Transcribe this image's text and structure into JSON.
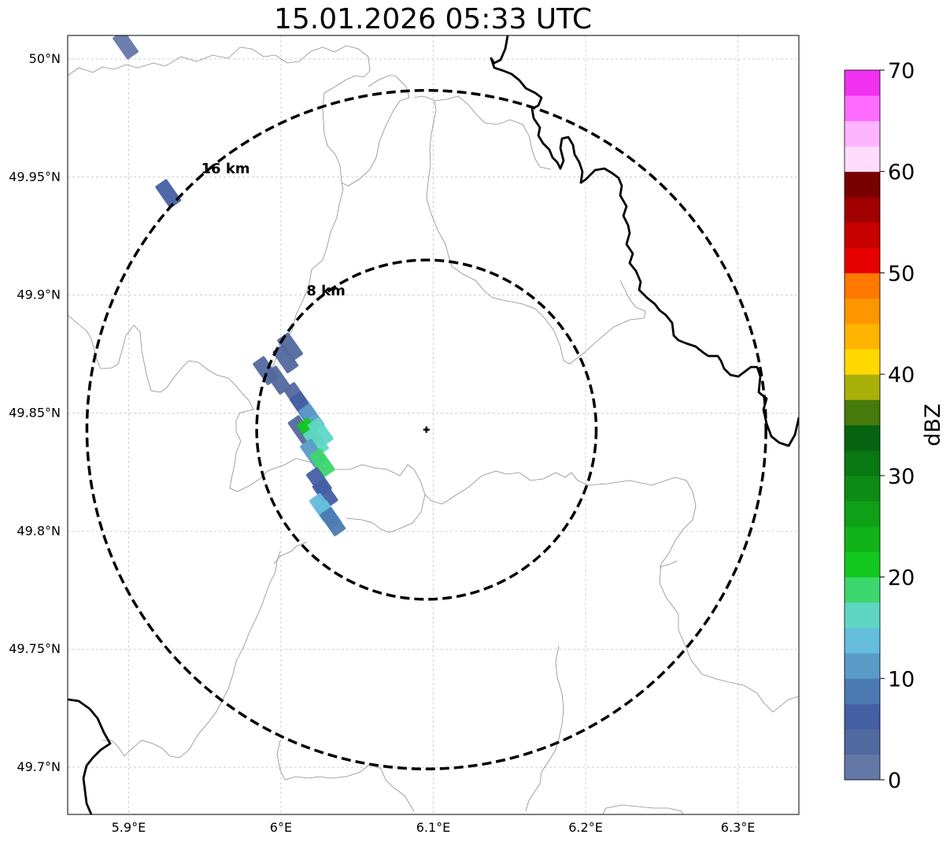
{
  "title": "15.01.2026 05:33 UTC",
  "map": {
    "lon_range": [
      5.86,
      6.34
    ],
    "lat_range": [
      49.68,
      50.01
    ],
    "x_ticks": [
      {
        "value": 5.9,
        "label": "5.9°E"
      },
      {
        "value": 6.0,
        "label": "6°E"
      },
      {
        "value": 6.1,
        "label": "6.1°E"
      },
      {
        "value": 6.2,
        "label": "6.2°E"
      },
      {
        "value": 6.3,
        "label": "6.3°E"
      }
    ],
    "y_ticks": [
      {
        "value": 50.0,
        "label": "50°N"
      },
      {
        "value": 49.95,
        "label": "49.95°N"
      },
      {
        "value": 49.9,
        "label": "49.9°N"
      },
      {
        "value": 49.85,
        "label": "49.85°N"
      },
      {
        "value": 49.8,
        "label": "49.8°N"
      },
      {
        "value": 49.75,
        "label": "49.75°N"
      },
      {
        "value": 49.7,
        "label": "49.7°N"
      }
    ],
    "radar_site": {
      "lon": 6.0955,
      "lat": 49.843
    },
    "range_rings": [
      {
        "label": "8 km",
        "radius_km": 8
      },
      {
        "label": "16 km",
        "radius_km": 16
      }
    ]
  },
  "colorbar": {
    "label": "dBZ",
    "min": 0,
    "max": 70,
    "step": 2.5,
    "tick_labels": [
      "0",
      "10",
      "20",
      "30",
      "40",
      "50",
      "60",
      "70"
    ],
    "colors": [
      "#6478a8",
      "#52699f",
      "#445fa3",
      "#4b7ab2",
      "#5a9bc8",
      "#64bddb",
      "#5fd6c4",
      "#3cd66e",
      "#12c81e",
      "#10b41a",
      "#0ea016",
      "#0c8c14",
      "#0a7812",
      "#066410",
      "#467a0a",
      "#aab00a",
      "#ffd800",
      "#ffb400",
      "#ff9600",
      "#ff7800",
      "#e60000",
      "#c80000",
      "#a00000",
      "#780000",
      "#ffdcff",
      "#ffb4ff",
      "#ff6cff",
      "#f032f0"
    ]
  },
  "reflectivity_cells": [
    {
      "lon": 5.99,
      "lat": 49.868,
      "dbz": 3
    },
    {
      "lon": 5.998,
      "lat": 49.864,
      "dbz": 4
    },
    {
      "lon": 6.003,
      "lat": 49.873,
      "dbz": 3
    },
    {
      "lon": 6.006,
      "lat": 49.878,
      "dbz": 4
    },
    {
      "lon": 6.01,
      "lat": 49.857,
      "dbz": 4
    },
    {
      "lon": 6.014,
      "lat": 49.853,
      "dbz": 6
    },
    {
      "lon": 6.02,
      "lat": 49.848,
      "dbz": 11
    },
    {
      "lon": 6.013,
      "lat": 49.843,
      "dbz": 3
    },
    {
      "lon": 6.019,
      "lat": 49.842,
      "dbz": 22
    },
    {
      "lon": 6.023,
      "lat": 49.838,
      "dbz": 17
    },
    {
      "lon": 6.026,
      "lat": 49.842,
      "dbz": 15
    },
    {
      "lon": 6.021,
      "lat": 49.833,
      "dbz": 10
    },
    {
      "lon": 6.027,
      "lat": 49.829,
      "dbz": 19
    },
    {
      "lon": 6.025,
      "lat": 49.821,
      "dbz": 5
    },
    {
      "lon": 6.029,
      "lat": 49.816,
      "dbz": 6
    },
    {
      "lon": 6.027,
      "lat": 49.81,
      "dbz": 13
    },
    {
      "lon": 6.031,
      "lat": 49.807,
      "dbz": 14
    },
    {
      "lon": 6.034,
      "lat": 49.804,
      "dbz": 8
    },
    {
      "lon": 5.898,
      "lat": 50.006,
      "dbz": 1
    },
    {
      "lon": 5.926,
      "lat": 49.943,
      "dbz": 5
    }
  ]
}
